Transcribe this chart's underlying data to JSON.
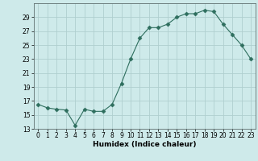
{
  "x": [
    0,
    1,
    2,
    3,
    4,
    5,
    6,
    7,
    8,
    9,
    10,
    11,
    12,
    13,
    14,
    15,
    16,
    17,
    18,
    19,
    20,
    21,
    22,
    23
  ],
  "y": [
    16.5,
    16.0,
    15.8,
    15.7,
    13.5,
    15.8,
    15.5,
    15.5,
    16.5,
    19.5,
    23.0,
    26.0,
    27.5,
    27.5,
    28.0,
    29.0,
    29.5,
    29.5,
    30.0,
    29.8,
    28.0,
    26.5,
    25.0,
    23.0
  ],
  "line_color": "#2e6e5e",
  "marker": "D",
  "marker_size": 2.5,
  "bg_color": "#ceeaea",
  "grid_color": "#b0cfcf",
  "xlabel": "Humidex (Indice chaleur)",
  "ylim": [
    13,
    31
  ],
  "xlim": [
    -0.5,
    23.5
  ],
  "yticks": [
    13,
    15,
    17,
    19,
    21,
    23,
    25,
    27,
    29
  ],
  "xticks": [
    0,
    1,
    2,
    3,
    4,
    5,
    6,
    7,
    8,
    9,
    10,
    11,
    12,
    13,
    14,
    15,
    16,
    17,
    18,
    19,
    20,
    21,
    22,
    23
  ],
  "xlabel_fontsize": 6.5,
  "tick_fontsize": 5.5
}
